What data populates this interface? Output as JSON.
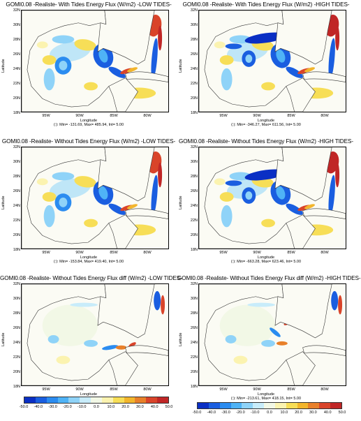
{
  "panels": [
    {
      "title": "GOMI0.08 -Realiste- With Tides Energy Flux (W/m2) -LOW TIDES-",
      "stats": "(:): Min= -131.69, Max= 485.94, Int= 5.00",
      "variant": "strong"
    },
    {
      "title": "GOMI0.08 -Realiste- With Tides Energy Flux (W/m2) -HIGH TIDES-",
      "stats": "(:): Min= -346.27, Max= 611.56, Int= 5.00",
      "variant": "strong2"
    },
    {
      "title": "GOMI0.08 -Realiste- Without Tides Energy Flux (W/m2) -LOW TIDES-",
      "stats": "(:): Min= -153.84, Max= 419.40, Int= 5.00",
      "variant": "strong"
    },
    {
      "title": "GOMI0.08 -Realiste- Without Tides Energy Flux (W/m2) -HIGH TIDES-",
      "stats": "(:): Min= -663.28, Max= 623.46, Int= 5.00",
      "variant": "strong2"
    },
    {
      "title": "GOMI0.08 -Realiste- Without Tides Energy Flux diff (W/m2) -LOW TIDES-",
      "stats": "(:): Min= -268.55, Max= 207.28, Int= 5.00",
      "variant": "diff"
    },
    {
      "title": "GOMI0.08 -Realiste- Without Tides Energy Flux diff (W/m2) -HIGH TIDES-",
      "stats": "(:): Min= -213.61, Max= 418.15, Int= 5.00",
      "variant": "diff2"
    }
  ],
  "axes": {
    "ylabel": "Latitude",
    "xlabel": "Longitude",
    "yticks": [
      "32N",
      "30N",
      "28N",
      "26N",
      "24N",
      "22N",
      "20N",
      "18N"
    ],
    "xticks": [
      "95W",
      "90W",
      "85W",
      "80W"
    ]
  },
  "colorbar": {
    "labels": [
      "-50.0",
      "-40.0",
      "-30.0",
      "-20.0",
      "-10.0",
      "0.0",
      "10.0",
      "20.0",
      "30.0",
      "40.0",
      "50.0"
    ],
    "colors": [
      "#0a2fc4",
      "#1a5ee0",
      "#2b8cf0",
      "#4fb3f6",
      "#8fd3f8",
      "#c8ecfa",
      "#f2f8e6",
      "#fbf3b0",
      "#f7de57",
      "#f2b52c",
      "#e8802a",
      "#d9442a",
      "#c02626"
    ]
  }
}
